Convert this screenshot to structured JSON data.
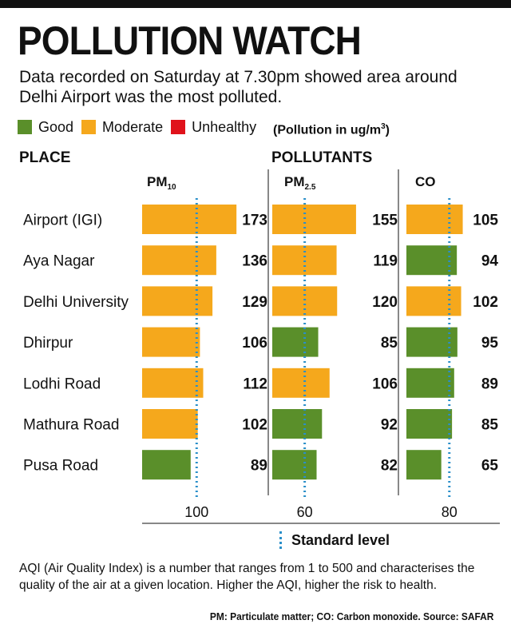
{
  "header": {
    "title": "POLLUTION WATCH",
    "subtitle": "Data recorded on Saturday at 7.30pm showed area around Delhi Airport was the most polluted."
  },
  "legend": {
    "items": [
      {
        "label": "Good",
        "color": "#5a8f2a"
      },
      {
        "label": "Moderate",
        "color": "#f5a81c"
      },
      {
        "label": "Unhealthy",
        "color": "#e0121b"
      }
    ],
    "unit_prefix": "(Pollution in ug/m",
    "unit_sup": "3",
    "unit_suffix": ")"
  },
  "labels": {
    "place": "PLACE",
    "pollutants": "POLLUTANTS",
    "standard_level": "Standard level"
  },
  "chart_data": {
    "type": "bar",
    "orientation": "horizontal",
    "categories": [
      "Airport (IGI)",
      "Aya Nagar",
      "Delhi University",
      "Dhirpur",
      "Lodhi Road",
      "Mathura Road",
      "Pusa Road"
    ],
    "series": [
      {
        "name": "PM",
        "name_sub": "10",
        "standard": 100,
        "standard_label": "100",
        "values": [
          173,
          136,
          129,
          106,
          112,
          102,
          89
        ],
        "status": [
          "moderate",
          "moderate",
          "moderate",
          "moderate",
          "moderate",
          "moderate",
          "good"
        ]
      },
      {
        "name": "PM",
        "name_sub": "2.5",
        "standard": 60,
        "standard_label": "60",
        "values": [
          155,
          119,
          120,
          85,
          106,
          92,
          82
        ],
        "status": [
          "moderate",
          "moderate",
          "moderate",
          "good",
          "moderate",
          "good",
          "good"
        ]
      },
      {
        "name": "CO",
        "name_sub": "",
        "standard": 80,
        "standard_label": "80",
        "values": [
          105,
          94,
          102,
          95,
          89,
          85,
          65
        ],
        "status": [
          "moderate",
          "good",
          "moderate",
          "good",
          "good",
          "good",
          "good"
        ]
      }
    ],
    "colors": {
      "good": "#5a8f2a",
      "moderate": "#f5a81c",
      "unhealthy": "#e0121b",
      "standard": "#2a8fc9"
    }
  },
  "footer": {
    "note": "AQI (Air Quality Index) is a number that ranges from 1 to 500 and characterises the quality of the air at a given location. Higher the AQI, higher the risk to health.",
    "source": "PM: Particulate matter; CO: Carbon monoxide. Source: SAFAR"
  }
}
